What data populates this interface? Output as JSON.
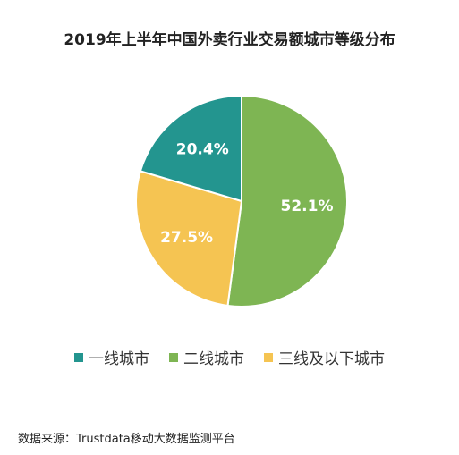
{
  "chart_data": {
    "type": "pie",
    "title": "2019年上半年中国外卖行业交易额城市等级分布",
    "categories": [
      "一线城市",
      "二线城市",
      "三线及以下城市"
    ],
    "values": [
      20.4,
      52.1,
      27.5
    ],
    "labels": [
      "20.4%",
      "52.1%",
      "27.5%"
    ],
    "colors": [
      "#23958F",
      "#7EB553",
      "#F5C452"
    ],
    "legend_position": "bottom"
  },
  "source": "数据来源：Trustdata移动大数据监测平台"
}
